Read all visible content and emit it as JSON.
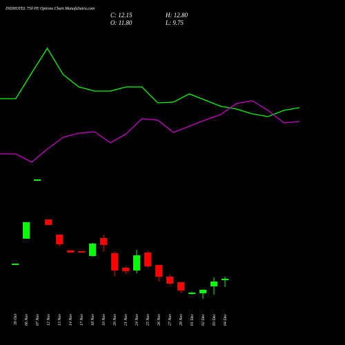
{
  "chart_data": {
    "type": "candlestick",
    "title": "INDHOTEL 750 PE Options Chart MunafaSutra.com",
    "ohlc_text": [
      "C: 12.15",
      "H: 12.80",
      "O: 11.80",
      "L: 9.75"
    ],
    "categories": [
      "30 Oct",
      "06 Nov",
      "07 Nov",
      "12 Nov",
      "13 Nov",
      "14 Nov",
      "17 Nov",
      "18 Nov",
      "19 Nov",
      "20 Nov",
      "21 Nov",
      "24 Nov",
      "25 Nov",
      "26 Nov",
      "27 Nov",
      "28 Nov",
      "01 Dec",
      "02 Dec",
      "03 Dec",
      "04 Dec"
    ],
    "open": [
      16.55,
      23.75,
      40.95,
      29.35,
      24.95,
      20.35,
      20.15,
      18.75,
      23.95,
      19.55,
      15.35,
      14.55,
      19.75,
      16.15,
      12.75,
      11.15,
      7.75,
      7.95,
      9.95,
      11.8
    ],
    "high": [
      16.55,
      28.55,
      40.95,
      29.35,
      24.95,
      20.35,
      20.15,
      22.55,
      24.95,
      19.95,
      15.75,
      20.55,
      20.15,
      16.15,
      13.35,
      11.15,
      8.35,
      9.15,
      12.55,
      12.8
    ],
    "low": [
      16.55,
      23.75,
      40.95,
      27.75,
      21.55,
      19.75,
      19.75,
      18.55,
      19.95,
      12.75,
      13.55,
      13.75,
      15.35,
      11.35,
      10.35,
      7.95,
      7.55,
      6.35,
      7.55,
      9.75
    ],
    "close": [
      16.55,
      28.55,
      40.95,
      27.75,
      22.15,
      19.75,
      19.75,
      22.35,
      21.95,
      14.55,
      14.35,
      18.95,
      15.75,
      12.75,
      10.75,
      8.75,
      8.15,
      8.95,
      11.35,
      12.15
    ],
    "up_color": "#00ff00",
    "down_color": "#ff0000",
    "lines": [
      {
        "color": "#00ff00",
        "values": [
          64.35,
          64.35,
          71.75,
          78.95,
          71.35,
          67.75,
          66.55,
          66.55,
          67.75,
          67.75,
          63.15,
          63.35,
          65.75,
          63.95,
          62.15,
          61.35,
          59.95,
          59.15,
          60.95,
          61.75
        ]
      },
      {
        "color": "#cc00cc",
        "values": [
          48.35,
          48.35,
          45.95,
          49.75,
          53.15,
          54.35,
          54.75,
          51.55,
          54.15,
          58.55,
          58.15,
          54.55,
          56.35,
          58.15,
          59.75,
          62.95,
          63.75,
          60.95,
          57.35,
          57.75
        ]
      }
    ]
  }
}
